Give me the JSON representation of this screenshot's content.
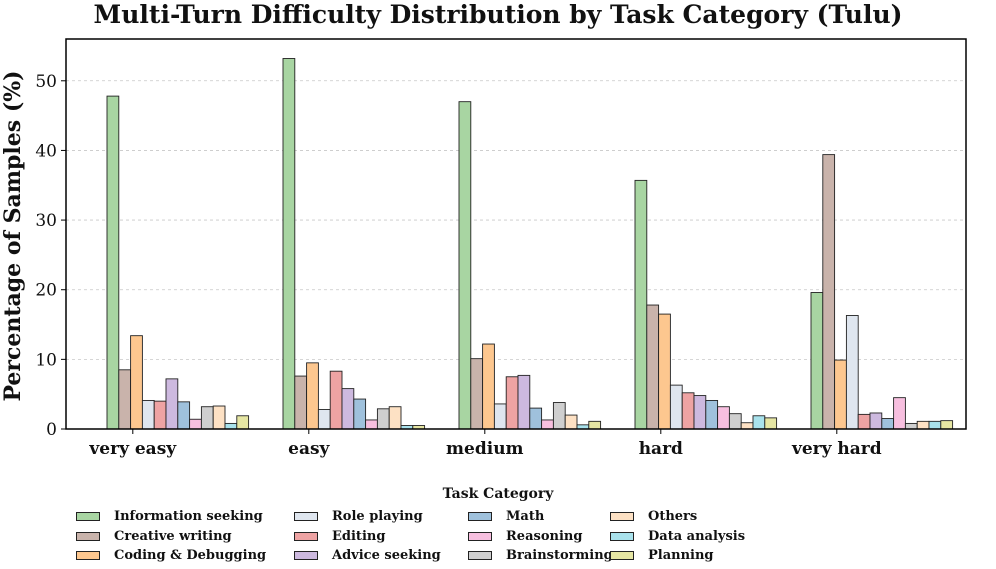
{
  "chart_data": {
    "type": "bar",
    "title": "Multi-Turn Difficulty Distribution by Task Category (Tulu)",
    "xlabel": "",
    "ylabel": "Percentage of Samples (%)",
    "ylim": [
      0,
      56
    ],
    "yticks": [
      0,
      10,
      20,
      30,
      40,
      50
    ],
    "grid": "horizontal dashed",
    "categories": [
      "very easy",
      "easy",
      "medium",
      "hard",
      "very hard"
    ],
    "legend_title": "Task Category",
    "legend_position": "bottom",
    "series": [
      {
        "name": "Information seeking",
        "color": "#a8d5a2",
        "values": [
          47.8,
          53.2,
          47.0,
          35.7,
          19.6
        ]
      },
      {
        "name": "Creative writing",
        "color": "#c9b3ab",
        "values": [
          8.5,
          7.6,
          10.1,
          17.8,
          39.4
        ]
      },
      {
        "name": "Coding & Debugging",
        "color": "#fdc78f",
        "values": [
          13.4,
          9.5,
          12.2,
          16.5,
          9.9
        ]
      },
      {
        "name": "Role playing",
        "color": "#dfe6ef",
        "values": [
          4.1,
          2.8,
          3.6,
          6.3,
          16.3
        ]
      },
      {
        "name": "Editing",
        "color": "#eea3a3",
        "values": [
          4.0,
          8.3,
          7.5,
          5.2,
          2.1
        ]
      },
      {
        "name": "Advice seeking",
        "color": "#cdb9df",
        "values": [
          7.2,
          5.8,
          7.7,
          4.8,
          2.3
        ]
      },
      {
        "name": "Math",
        "color": "#9fc1dc",
        "values": [
          3.9,
          4.3,
          3.0,
          4.1,
          1.5
        ]
      },
      {
        "name": "Reasoning",
        "color": "#f7bfdf",
        "values": [
          1.4,
          1.3,
          1.3,
          3.2,
          4.5
        ]
      },
      {
        "name": "Brainstorming",
        "color": "#cfcfcf",
        "values": [
          3.2,
          2.9,
          3.8,
          2.2,
          0.8
        ]
      },
      {
        "name": "Others",
        "color": "#fde1c4",
        "values": [
          3.3,
          3.2,
          2.0,
          0.9,
          1.1
        ]
      },
      {
        "name": "Data analysis",
        "color": "#a9e2ec",
        "values": [
          0.8,
          0.5,
          0.6,
          1.9,
          1.1
        ]
      },
      {
        "name": "Planning",
        "color": "#e6e6a3",
        "values": [
          1.9,
          0.5,
          1.1,
          1.6,
          1.2
        ]
      }
    ]
  }
}
